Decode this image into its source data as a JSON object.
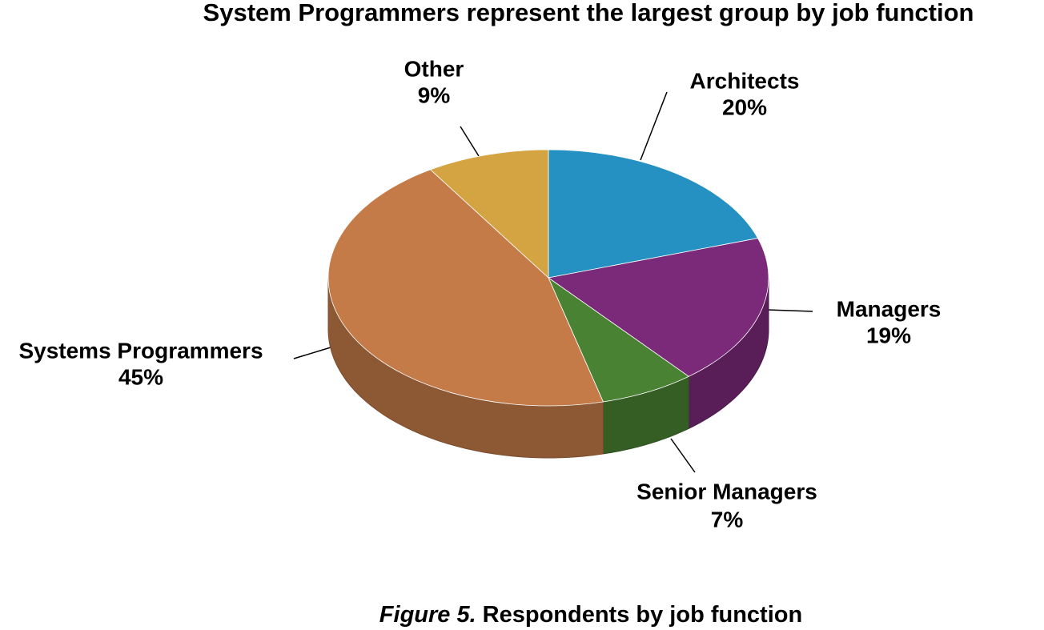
{
  "chart_data": {
    "type": "pie",
    "title": "System Programmers represent the largest group by job function",
    "categories": [
      "Architects",
      "Managers",
      "Senior Managers",
      "Systems Programmers",
      "Other"
    ],
    "values": [
      20,
      19,
      7,
      45,
      9
    ],
    "value_labels": [
      "20%",
      "19%",
      "7%",
      "45%",
      "9%"
    ],
    "colors": [
      "#2591c3",
      "#7b2a7a",
      "#4a8234",
      "#c47b48",
      "#d4a442"
    ],
    "caption_label": "Figure 5.",
    "caption": "Respondents by job function"
  }
}
